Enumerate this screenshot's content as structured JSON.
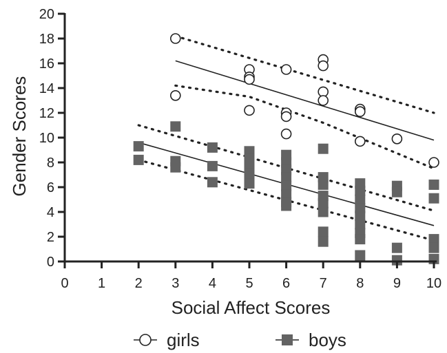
{
  "chart_data": {
    "type": "scatter",
    "xlabel": "Social Affect Scores",
    "ylabel": "Gender Scores",
    "xlim": [
      0,
      10
    ],
    "ylim": [
      0,
      20
    ],
    "x_ticks": [
      "0",
      "1",
      "2",
      "3",
      "4",
      "5",
      "6",
      "7",
      "8",
      "9",
      "10"
    ],
    "y_ticks": [
      "0",
      "2",
      "4",
      "6",
      "8",
      "10",
      "12",
      "14",
      "16",
      "18",
      "20"
    ],
    "grid": false,
    "legend_position": "bottom",
    "series": [
      {
        "name": "girls",
        "marker": "open-circle",
        "color": "#222222",
        "points": [
          [
            3,
            18.0
          ],
          [
            3,
            13.4
          ],
          [
            5,
            15.5
          ],
          [
            5,
            14.9
          ],
          [
            5,
            14.7
          ],
          [
            5,
            12.2
          ],
          [
            6,
            15.5
          ],
          [
            6,
            12.0
          ],
          [
            6,
            11.7
          ],
          [
            6,
            10.3
          ],
          [
            7,
            16.3
          ],
          [
            7,
            15.8
          ],
          [
            7,
            13.7
          ],
          [
            7,
            13.0
          ],
          [
            8,
            12.3
          ],
          [
            8,
            12.1
          ],
          [
            8,
            9.7
          ],
          [
            9,
            9.9
          ],
          [
            10,
            8.0
          ]
        ],
        "fit": {
          "start": [
            3,
            16.2
          ],
          "end": [
            10,
            9.8
          ]
        },
        "ci_upper": [
          [
            3,
            18.2
          ],
          [
            10,
            12.0
          ]
        ],
        "ci_lower": [
          [
            3,
            14.2
          ],
          [
            5,
            13.3
          ],
          [
            7,
            11.2
          ],
          [
            10,
            7.5
          ]
        ]
      },
      {
        "name": "boys",
        "marker": "filled-square",
        "color": "#636363",
        "points": [
          [
            2,
            9.3
          ],
          [
            2,
            8.2
          ],
          [
            3,
            10.9
          ],
          [
            3,
            8.1
          ],
          [
            3,
            7.6
          ],
          [
            4,
            9.2
          ],
          [
            4,
            7.7
          ],
          [
            4,
            6.4
          ],
          [
            5,
            8.9
          ],
          [
            5,
            8.3
          ],
          [
            5,
            7.7
          ],
          [
            5,
            7.1
          ],
          [
            5,
            6.3
          ],
          [
            6,
            8.6
          ],
          [
            6,
            8.0
          ],
          [
            6,
            7.4
          ],
          [
            6,
            6.8
          ],
          [
            6,
            6.1
          ],
          [
            6,
            5.4
          ],
          [
            6,
            4.8
          ],
          [
            6,
            4.5
          ],
          [
            7,
            9.1
          ],
          [
            7,
            6.8
          ],
          [
            7,
            6.2
          ],
          [
            7,
            5.3
          ],
          [
            7,
            4.7
          ],
          [
            7,
            4.0
          ],
          [
            7,
            2.4
          ],
          [
            7,
            1.6
          ],
          [
            8,
            6.3
          ],
          [
            8,
            5.7
          ],
          [
            8,
            5.0
          ],
          [
            8,
            4.3
          ],
          [
            8,
            3.7
          ],
          [
            8,
            3.0
          ],
          [
            8,
            2.3
          ],
          [
            8,
            1.8
          ],
          [
            8,
            0.5
          ],
          [
            9,
            6.1
          ],
          [
            9,
            5.6
          ],
          [
            9,
            1.1
          ],
          [
            9,
            0.1
          ],
          [
            10,
            6.2
          ],
          [
            10,
            5.1
          ],
          [
            10,
            1.8
          ],
          [
            10,
            1.1
          ],
          [
            10,
            0.2
          ]
        ],
        "fit": {
          "start": [
            2,
            9.6
          ],
          "end": [
            10,
            2.9
          ]
        },
        "ci_upper": [
          [
            2,
            11.0
          ],
          [
            10,
            4.1
          ]
        ],
        "ci_lower": [
          [
            2,
            8.2
          ],
          [
            10,
            1.7
          ]
        ]
      }
    ]
  }
}
